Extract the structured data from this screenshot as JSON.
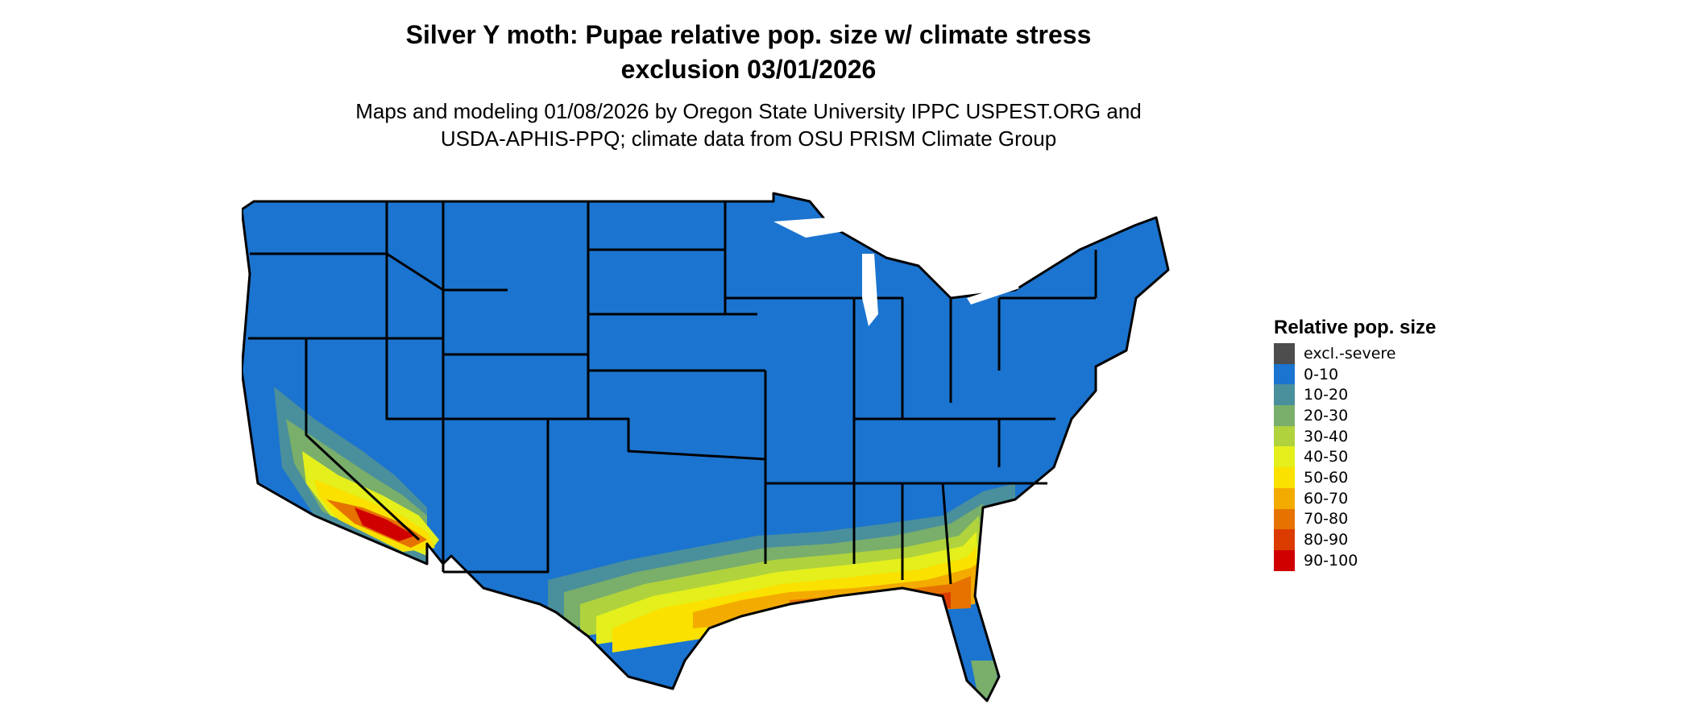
{
  "title_line1": "Silver Y moth: Pupae relative pop. size w/ climate stress",
  "title_line2": "exclusion 03/01/2026",
  "subtitle_line1": "Maps and modeling 01/08/2026 by Oregon State University IPPC USPEST.ORG and",
  "subtitle_line2": "USDA-APHIS-PPQ; climate data from OSU PRISM Climate Group",
  "legend": {
    "title": "Relative pop. size",
    "items": [
      {
        "label": "excl.-severe",
        "color": "#4d4d4d"
      },
      {
        "label": "0-10",
        "color": "#1b74cf"
      },
      {
        "label": "10-20",
        "color": "#4a8f9c"
      },
      {
        "label": "20-30",
        "color": "#79ae6b"
      },
      {
        "label": "30-40",
        "color": "#b0d23c"
      },
      {
        "label": "40-50",
        "color": "#e4ef1c"
      },
      {
        "label": "50-60",
        "color": "#fae100"
      },
      {
        "label": "60-70",
        "color": "#f3ab00"
      },
      {
        "label": "70-80",
        "color": "#e67300"
      },
      {
        "label": "80-90",
        "color": "#dc3b00"
      },
      {
        "label": "90-100",
        "color": "#d00000"
      }
    ]
  },
  "map": {
    "region": "Conterminous United States",
    "base_color": "#1b74cf",
    "border_color": "#000000",
    "dominant_class": "0-10",
    "elevated_regions": [
      "southern California",
      "southern Arizona",
      "southern Texas",
      "Gulf Coast",
      "northern Florida",
      "southern Georgia",
      "coastal South Carolina"
    ]
  }
}
